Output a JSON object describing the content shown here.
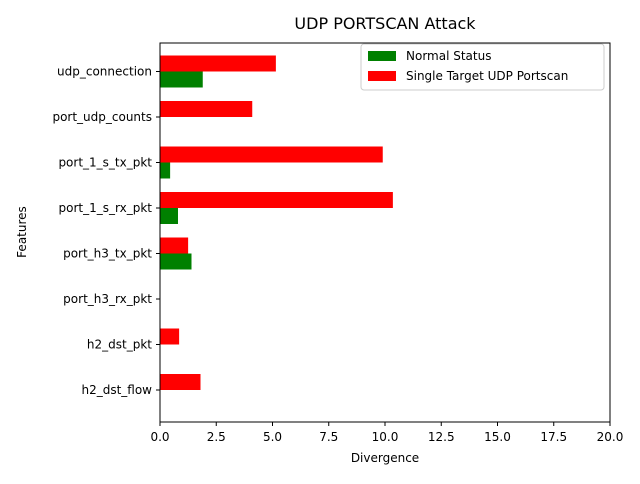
{
  "chart_data": {
    "type": "bar",
    "orientation": "horizontal",
    "title": "UDP PORTSCAN Attack",
    "xlabel": "Divergence",
    "ylabel": "Features",
    "categories": [
      "h2_dst_flow",
      "h2_dst_pkt",
      "port_h3_rx_pkt",
      "port_h3_tx_pkt",
      "port_1_s_rx_pkt",
      "port_1_s_tx_pkt",
      "port_udp_counts",
      "udp_connection"
    ],
    "series": [
      {
        "name": "Normal Status",
        "color": "#008000",
        "values": [
          0,
          0,
          0,
          1.4,
          0.8,
          0.45,
          0,
          1.9
        ]
      },
      {
        "name": "Single Target UDP Portscan",
        "color": "#ff0000",
        "values": [
          1.8,
          0.85,
          0,
          1.25,
          10.35,
          9.9,
          4.1,
          5.15
        ]
      }
    ],
    "xlim": [
      0,
      20
    ],
    "xticks": [
      0.0,
      2.5,
      5.0,
      7.5,
      10.0,
      12.5,
      15.0,
      17.5,
      20.0
    ],
    "xtick_labels": [
      "0.0",
      "2.5",
      "5.0",
      "7.5",
      "10.0",
      "12.5",
      "15.0",
      "17.5",
      "20.0"
    ],
    "grid": false,
    "legend_position": "top-right"
  }
}
